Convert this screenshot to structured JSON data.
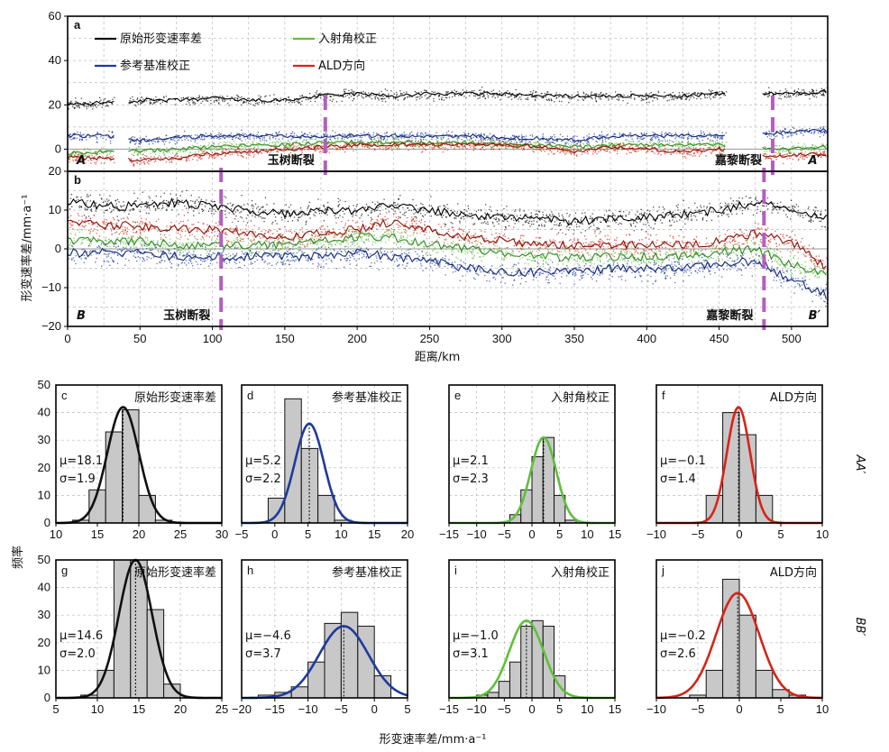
{
  "profile_axes": {
    "ylabel": "形变速率差/mm·a⁻¹",
    "xlabel": "距离/km",
    "x_ticks": [
      "0",
      "50",
      "100",
      "150",
      "200",
      "250",
      "300",
      "350",
      "400",
      "450",
      "500"
    ]
  },
  "hist_axes": {
    "ylabel": "频率",
    "xlabel": "形变速率差/mm·a⁻¹"
  },
  "legend": {
    "raw": "原始形变速率差",
    "incidence": "入射角校正",
    "reference": "参考基准校正",
    "ald": "ALD方向"
  },
  "row_labels": {
    "top": "AA′",
    "bottom": "BB′"
  },
  "colors": {
    "raw": "#111111",
    "reference": "#1f3a9e",
    "incidence": "#5fbf3a",
    "ald": "#d62418",
    "fault": "#b35fc0",
    "bar": "#c8c8c8"
  },
  "chart_data": [
    {
      "id": "a",
      "type": "scatter",
      "panel_label": "a",
      "xlim": [
        0,
        525
      ],
      "ylim": [
        -10,
        60
      ],
      "y_ticks": [
        "60",
        "40",
        "20",
        "0"
      ],
      "profile_start": "A",
      "profile_end": "A′",
      "faults": [
        {
          "name": "玉树断裂",
          "x": 178
        },
        {
          "name": "嘉黎断裂",
          "x": 487
        }
      ],
      "gaps": [
        [
          32,
          42
        ],
        [
          455,
          480
        ]
      ],
      "series": [
        {
          "name": "原始形变速率差",
          "key": "raw",
          "x": [
            0,
            25,
            50,
            75,
            100,
            125,
            150,
            175,
            200,
            225,
            250,
            275,
            300,
            325,
            350,
            375,
            400,
            425,
            450,
            480,
            500,
            525
          ],
          "y": [
            20,
            21,
            22,
            22,
            23,
            22,
            22,
            24,
            25,
            24,
            25,
            25,
            25,
            24,
            24,
            24,
            24,
            24,
            25,
            25,
            25,
            26
          ]
        },
        {
          "name": "参考基准校正",
          "key": "reference",
          "x": [
            0,
            25,
            50,
            75,
            100,
            125,
            150,
            175,
            200,
            225,
            250,
            275,
            300,
            325,
            350,
            375,
            400,
            425,
            450,
            480,
            500,
            525
          ],
          "y": [
            6,
            6,
            4,
            5,
            6,
            6,
            6,
            6,
            6,
            6,
            6,
            6,
            5,
            5,
            4,
            6,
            6,
            6,
            6,
            7,
            8,
            9
          ]
        },
        {
          "name": "入射角校正",
          "key": "incidence",
          "x": [
            0,
            25,
            50,
            75,
            100,
            125,
            150,
            175,
            200,
            225,
            250,
            275,
            300,
            325,
            350,
            375,
            400,
            425,
            450,
            480,
            500,
            525
          ],
          "y": [
            -2,
            -1,
            -1,
            0,
            1,
            2,
            2,
            3,
            3,
            3,
            3,
            3,
            2,
            2,
            1,
            2,
            2,
            2,
            2,
            0,
            0,
            1
          ]
        },
        {
          "name": "ALD方向",
          "key": "ald",
          "x": [
            0,
            25,
            50,
            75,
            100,
            125,
            150,
            175,
            200,
            225,
            250,
            275,
            300,
            325,
            350,
            375,
            400,
            425,
            450,
            480,
            500,
            525
          ],
          "y": [
            -4,
            -4,
            -5,
            -4,
            -2,
            -1,
            0,
            1,
            2,
            2,
            2,
            2,
            2,
            1,
            -1,
            1,
            0,
            -1,
            0,
            -3,
            -3,
            -2
          ]
        }
      ]
    },
    {
      "id": "b",
      "type": "scatter",
      "panel_label": "b",
      "xlim": [
        0,
        525
      ],
      "ylim": [
        -20,
        20
      ],
      "y_ticks": [
        "20",
        "10",
        "0",
        "−10",
        "−20"
      ],
      "profile_start": "B",
      "profile_end": "B′",
      "faults": [
        {
          "name": "玉树断裂",
          "x": 106
        },
        {
          "name": "嘉黎断裂",
          "x": 481
        }
      ],
      "series": [
        {
          "name": "原始形变速率差",
          "key": "raw",
          "x": [
            0,
            25,
            50,
            75,
            100,
            125,
            150,
            175,
            200,
            225,
            250,
            275,
            300,
            325,
            350,
            375,
            400,
            425,
            450,
            475,
            500,
            525
          ],
          "y": [
            12,
            11,
            11,
            12,
            11,
            10,
            9,
            10,
            10,
            11,
            10,
            9,
            8,
            8,
            7,
            8,
            8,
            9,
            10,
            12,
            10,
            8
          ]
        },
        {
          "name": "ALD方向",
          "key": "ald",
          "x": [
            0,
            25,
            50,
            75,
            100,
            125,
            150,
            175,
            200,
            225,
            250,
            275,
            300,
            325,
            350,
            375,
            400,
            425,
            450,
            475,
            500,
            525
          ],
          "y": [
            7,
            6,
            6,
            5,
            5,
            4,
            3,
            4,
            5,
            7,
            5,
            3,
            2,
            1,
            1,
            1,
            1,
            1,
            2,
            4,
            2,
            -5
          ]
        },
        {
          "name": "入射角校正",
          "key": "incidence",
          "x": [
            0,
            25,
            50,
            75,
            100,
            125,
            150,
            175,
            200,
            225,
            250,
            275,
            300,
            325,
            350,
            375,
            400,
            425,
            450,
            475,
            500,
            525
          ],
          "y": [
            2,
            2,
            2,
            1,
            1,
            1,
            1,
            2,
            3,
            3,
            1,
            0,
            -1,
            -2,
            -2,
            -2,
            -2,
            -2,
            -1,
            0,
            -4,
            -7
          ]
        },
        {
          "name": "参考基准校正",
          "key": "reference",
          "x": [
            0,
            25,
            50,
            75,
            100,
            125,
            150,
            175,
            200,
            225,
            250,
            275,
            300,
            325,
            350,
            375,
            400,
            425,
            450,
            475,
            500,
            525
          ],
          "y": [
            -1,
            -1,
            -1,
            -2,
            -2,
            -2,
            -2,
            -2,
            -1,
            -2,
            -3,
            -5,
            -6,
            -6,
            -6,
            -5,
            -5,
            -5,
            -4,
            -3,
            -8,
            -12
          ]
        }
      ]
    },
    {
      "id": "c",
      "type": "bar",
      "panel_label": "c",
      "title": "原始形变速率差",
      "key": "raw",
      "xlim": [
        10,
        30
      ],
      "ylim": [
        0,
        50
      ],
      "x_ticks": [
        "10",
        "15",
        "20",
        "25",
        "30"
      ],
      "y_ticks": [
        "50",
        "40",
        "30",
        "20",
        "10",
        "0"
      ],
      "bin_edges": [
        12,
        14,
        16,
        18,
        20,
        22,
        24,
        26
      ],
      "counts": [
        1,
        12,
        33,
        41,
        10,
        1,
        0
      ],
      "mu": 18.1,
      "sigma": 1.9,
      "mu_text": "μ=18.1",
      "sigma_text": "σ=1.9",
      "curve_peak": 42
    },
    {
      "id": "d",
      "type": "bar",
      "panel_label": "d",
      "title": "参考基准校正",
      "key": "reference",
      "xlim": [
        -5,
        20
      ],
      "ylim": [
        0,
        50
      ],
      "x_ticks": [
        "−5",
        "0",
        "5",
        "10",
        "15",
        "20"
      ],
      "y_ticks": [
        "50",
        "40",
        "30",
        "20",
        "10",
        "0"
      ],
      "bin_edges": [
        -1,
        1.5,
        4,
        6.5,
        9,
        11.5,
        14
      ],
      "counts": [
        9,
        45,
        27,
        10,
        1,
        0
      ],
      "mu": 5.2,
      "sigma": 2.2,
      "mu_text": "μ=5.2",
      "sigma_text": "σ=2.2",
      "curve_peak": 36
    },
    {
      "id": "e",
      "type": "bar",
      "panel_label": "e",
      "title": "入射角校正",
      "key": "incidence",
      "xlim": [
        -15,
        15
      ],
      "ylim": [
        0,
        50
      ],
      "x_ticks": [
        "−15",
        "−10",
        "−5",
        "0",
        "5",
        "10",
        "15"
      ],
      "y_ticks": [
        "50",
        "40",
        "30",
        "20",
        "10",
        "0"
      ],
      "bin_edges": [
        -4,
        -2,
        0,
        2,
        4,
        6,
        8
      ],
      "counts": [
        3,
        12,
        24,
        31,
        10,
        1
      ],
      "mu": 2.1,
      "sigma": 2.3,
      "mu_text": "μ=2.1",
      "sigma_text": "σ=2.3",
      "curve_peak": 31
    },
    {
      "id": "f",
      "type": "bar",
      "panel_label": "f",
      "title": "ALD方向",
      "key": "ald",
      "xlim": [
        -10,
        10
      ],
      "ylim": [
        0,
        50
      ],
      "x_ticks": [
        "−10",
        "−5",
        "0",
        "5",
        "10"
      ],
      "y_ticks": [
        "50",
        "40",
        "30",
        "20",
        "10",
        "0"
      ],
      "bin_edges": [
        -4,
        -2,
        0,
        2,
        4
      ],
      "counts": [
        10,
        40,
        32,
        10
      ],
      "mu": -0.1,
      "sigma": 1.4,
      "mu_text": "μ=−0.1",
      "sigma_text": "σ=1.4",
      "curve_peak": 42
    },
    {
      "id": "g",
      "type": "bar",
      "panel_label": "g",
      "title": "原始形变速率差",
      "key": "raw",
      "xlim": [
        5,
        25
      ],
      "ylim": [
        0,
        50
      ],
      "x_ticks": [
        "5",
        "10",
        "15",
        "20",
        "25"
      ],
      "y_ticks": [
        "50",
        "40",
        "30",
        "20",
        "10",
        "0"
      ],
      "bin_edges": [
        6,
        8,
        10,
        12,
        14,
        16,
        18,
        20
      ],
      "counts": [
        0,
        1,
        10,
        50,
        50,
        32,
        5
      ],
      "mu": 14.6,
      "sigma": 2.0,
      "mu_text": "μ=14.6",
      "sigma_text": "σ=2.0",
      "curve_peak": 50
    },
    {
      "id": "h",
      "type": "bar",
      "panel_label": "h",
      "title": "参考基准校正",
      "key": "reference",
      "xlim": [
        -20,
        5
      ],
      "ylim": [
        0,
        50
      ],
      "x_ticks": [
        "−20",
        "−15",
        "−10",
        "−5",
        "0",
        "5"
      ],
      "y_ticks": [
        "50",
        "40",
        "30",
        "20",
        "10",
        "0"
      ],
      "bin_edges": [
        -17.5,
        -15,
        -12.5,
        -10,
        -7.5,
        -5,
        -2.5,
        0,
        2.5
      ],
      "counts": [
        1,
        2,
        4,
        13,
        27,
        31,
        26,
        8
      ],
      "mu": -4.6,
      "sigma": 3.7,
      "mu_text": "μ=−4.6",
      "sigma_text": "σ=3.7",
      "curve_peak": 26
    },
    {
      "id": "i",
      "type": "bar",
      "panel_label": "i",
      "title": "入射角校正",
      "key": "incidence",
      "xlim": [
        -15,
        15
      ],
      "ylim": [
        0,
        50
      ],
      "x_ticks": [
        "−15",
        "−10",
        "−5",
        "0",
        "5",
        "10",
        "15"
      ],
      "y_ticks": [
        "50",
        "40",
        "30",
        "20",
        "10",
        "0"
      ],
      "bin_edges": [
        -10,
        -8,
        -6,
        -4,
        -2,
        0,
        2,
        4,
        6
      ],
      "counts": [
        1,
        2,
        6,
        13,
        26,
        28,
        26,
        8
      ],
      "mu": -1.0,
      "sigma": 3.1,
      "mu_text": "μ=−1.0",
      "sigma_text": "σ=3.1",
      "curve_peak": 28
    },
    {
      "id": "j",
      "type": "bar",
      "panel_label": "j",
      "title": "ALD方向",
      "key": "ald",
      "xlim": [
        -10,
        10
      ],
      "ylim": [
        0,
        50
      ],
      "x_ticks": [
        "−10",
        "−5",
        "0",
        "5",
        "10"
      ],
      "y_ticks": [
        "50",
        "40",
        "30",
        "20",
        "10",
        "0"
      ],
      "bin_edges": [
        -6,
        -4,
        -2,
        0,
        2,
        4,
        6,
        8
      ],
      "counts": [
        1,
        10,
        43,
        30,
        10,
        3,
        1
      ],
      "mu": -0.2,
      "sigma": 2.6,
      "mu_text": "μ=−0.2",
      "sigma_text": "σ=2.6",
      "curve_peak": 38
    }
  ]
}
